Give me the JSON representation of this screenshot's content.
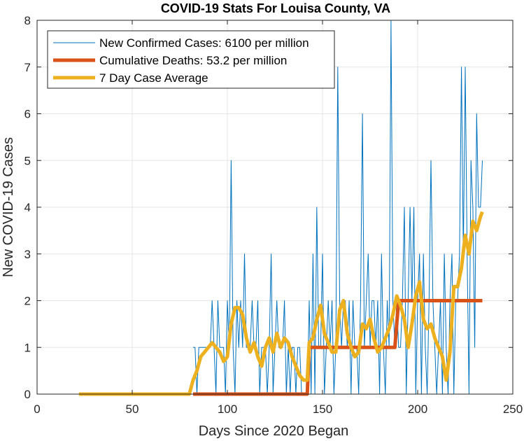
{
  "chart_data": {
    "type": "line",
    "title": "COVID-19 Stats For Louisa County, VA",
    "xlabel": "Days Since 2020 Began",
    "ylabel": "New COVID-19 Cases",
    "xlim": [
      0,
      250
    ],
    "ylim": [
      0,
      8
    ],
    "xticks": [
      0,
      50,
      100,
      150,
      200,
      250
    ],
    "yticks": [
      0,
      1,
      2,
      3,
      4,
      5,
      6,
      7,
      8
    ],
    "grid": true,
    "legend_position": "top-left",
    "series": [
      {
        "name": "New Confirmed Cases: 6100 per million",
        "color": "#0072BD",
        "x": [
          82,
          83,
          84,
          85,
          86,
          87,
          88,
          89,
          90,
          91,
          92,
          93,
          94,
          95,
          96,
          97,
          98,
          99,
          100,
          101,
          102,
          103,
          104,
          105,
          106,
          107,
          108,
          109,
          110,
          111,
          112,
          113,
          114,
          115,
          116,
          117,
          118,
          119,
          120,
          121,
          122,
          123,
          124,
          125,
          126,
          127,
          128,
          129,
          130,
          131,
          132,
          133,
          134,
          135,
          136,
          137,
          138,
          139,
          140,
          141,
          142,
          143,
          144,
          145,
          146,
          147,
          148,
          149,
          150,
          151,
          152,
          153,
          154,
          155,
          156,
          157,
          158,
          159,
          160,
          161,
          162,
          163,
          164,
          165,
          166,
          167,
          168,
          169,
          170,
          171,
          172,
          173,
          174,
          175,
          176,
          177,
          178,
          179,
          180,
          181,
          182,
          183,
          184,
          185,
          186,
          187,
          188,
          189,
          190,
          191,
          192,
          193,
          194,
          195,
          196,
          197,
          198,
          199,
          200,
          201,
          202,
          203,
          204,
          205,
          206,
          207,
          208,
          209,
          210,
          211,
          212,
          213,
          214,
          215,
          216,
          217,
          218,
          219,
          220,
          221,
          222,
          223,
          224,
          225,
          226,
          227,
          228,
          229,
          230,
          231,
          232,
          233,
          234
        ],
        "values": [
          1,
          1,
          0,
          1,
          1,
          1,
          1,
          1,
          1,
          1,
          2,
          1,
          0,
          2,
          1,
          1,
          1,
          0,
          2,
          1,
          5,
          1,
          0,
          2,
          1,
          2,
          1,
          3,
          1,
          1,
          1,
          2,
          1,
          1,
          2,
          0,
          1,
          1,
          1,
          0,
          1,
          3,
          0,
          1,
          2,
          1,
          1,
          1,
          2,
          0,
          1,
          0,
          1,
          1,
          0,
          1,
          1,
          0,
          0,
          0,
          0,
          2,
          0,
          3,
          0,
          4,
          1,
          1,
          3,
          0,
          1,
          2,
          1,
          2,
          0,
          1,
          7,
          2,
          1,
          2,
          2,
          1,
          2,
          0,
          2,
          1,
          1,
          0,
          2,
          6,
          1,
          2,
          3,
          1,
          2,
          2,
          1,
          2,
          0,
          3,
          1,
          0,
          2,
          1,
          8,
          2,
          1,
          2,
          1,
          1,
          2,
          4,
          0,
          2,
          4,
          2,
          4,
          0,
          2,
          3,
          0,
          3,
          1,
          0,
          2,
          5,
          2,
          1,
          0,
          1,
          2,
          0,
          3,
          1,
          0,
          2,
          3,
          0,
          2,
          2,
          3,
          7,
          3,
          7,
          3,
          0,
          5,
          4,
          1,
          6,
          4,
          4,
          5
        ],
        "line_width": 1
      },
      {
        "name": "Cumulative Deaths: 53.2 per million",
        "color": "#D95319",
        "x": [
          82,
          142,
          143,
          188,
          190,
          234
        ],
        "values": [
          0,
          0,
          1,
          1,
          2,
          2
        ],
        "line_width": 5
      },
      {
        "name": "7 Day Case Average",
        "color": "#EDB120",
        "x": [
          22,
          80,
          82,
          84,
          86,
          88,
          90,
          92,
          94,
          96,
          98,
          100,
          102,
          104,
          106,
          108,
          110,
          112,
          114,
          116,
          118,
          120,
          122,
          124,
          126,
          128,
          130,
          132,
          134,
          136,
          138,
          140,
          142,
          143,
          145,
          147,
          149,
          151,
          153,
          155,
          157,
          159,
          161,
          163,
          165,
          167,
          169,
          171,
          173,
          175,
          177,
          179,
          181,
          183,
          185,
          187,
          189,
          191,
          193,
          195,
          197,
          199,
          201,
          203,
          205,
          207,
          209,
          211,
          213,
          215,
          217,
          219,
          221,
          223,
          225,
          227,
          229,
          231,
          233,
          234
        ],
        "values": [
          0,
          0,
          0.3,
          0.5,
          0.8,
          0.9,
          1.0,
          1.1,
          1.0,
          0.9,
          0.7,
          0.8,
          1.5,
          1.85,
          1.85,
          1.7,
          1.2,
          0.9,
          1.1,
          0.8,
          0.6,
          1.0,
          1.2,
          0.9,
          1.3,
          1.0,
          1.2,
          1.1,
          0.8,
          0.6,
          0.4,
          0.3,
          0.3,
          1.1,
          1.2,
          1.6,
          1.9,
          1.3,
          1.1,
          0.9,
          0.9,
          1.8,
          2.0,
          1.3,
          1.0,
          0.8,
          0.9,
          1.5,
          1.4,
          1.6,
          1.2,
          0.9,
          1.0,
          1.2,
          1.4,
          1.7,
          2.1,
          1.9,
          1.6,
          1.0,
          1.5,
          2.1,
          2.4,
          1.6,
          1.4,
          1.5,
          1.2,
          1.0,
          0.8,
          0.3,
          0.9,
          2.3,
          2.3,
          2.7,
          3.4,
          3.0,
          3.7,
          3.5,
          3.8,
          3.9
        ],
        "line_width": 5
      }
    ]
  }
}
